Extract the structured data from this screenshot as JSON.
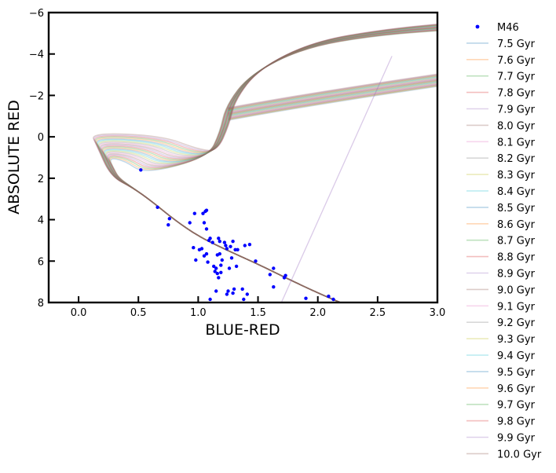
{
  "chart_data": {
    "type": "scatter",
    "xlabel": "BLUE-RED",
    "ylabel": "ABSOLUTE RED",
    "xlim": [
      -0.25,
      3.0
    ],
    "ylim": [
      8,
      -6
    ],
    "y_inverted": true,
    "grid": false,
    "legend_placement": "outside-right",
    "x_ticks": [
      "0.0",
      "0.5",
      "1.0",
      "1.5",
      "2.0",
      "2.5",
      "3.0"
    ],
    "x_tick_values": [
      0.0,
      0.5,
      1.0,
      1.5,
      2.0,
      2.5,
      3.0
    ],
    "y_ticks": [
      "−6",
      "−4",
      "−2",
      "0",
      "2",
      "4",
      "6",
      "8"
    ],
    "y_tick_values": [
      -6,
      -4,
      -2,
      0,
      2,
      4,
      6,
      8
    ],
    "scatter": {
      "name": "M46",
      "color": "#0000ff",
      "points": [
        [
          0.52,
          1.6
        ],
        [
          0.66,
          3.4
        ],
        [
          0.75,
          4.25
        ],
        [
          0.76,
          3.95
        ],
        [
          0.93,
          4.15
        ],
        [
          0.97,
          3.7
        ],
        [
          0.96,
          5.35
        ],
        [
          0.98,
          5.95
        ],
        [
          1.01,
          5.45
        ],
        [
          1.03,
          5.4
        ],
        [
          1.04,
          3.7
        ],
        [
          1.06,
          3.6
        ],
        [
          1.07,
          3.55
        ],
        [
          1.05,
          4.15
        ],
        [
          1.07,
          4.45
        ],
        [
          1.05,
          5.75
        ],
        [
          1.07,
          5.65
        ],
        [
          1.08,
          6.05
        ],
        [
          1.09,
          5.0
        ],
        [
          1.1,
          4.9
        ],
        [
          1.12,
          5.1
        ],
        [
          1.1,
          7.85
        ],
        [
          1.13,
          6.25
        ],
        [
          1.14,
          6.5
        ],
        [
          1.15,
          6.35
        ],
        [
          1.15,
          7.45
        ],
        [
          1.16,
          5.7
        ],
        [
          1.16,
          6.6
        ],
        [
          1.17,
          4.9
        ],
        [
          1.17,
          6.8
        ],
        [
          1.18,
          5.05
        ],
        [
          1.18,
          5.65
        ],
        [
          1.19,
          6.2
        ],
        [
          1.19,
          6.55
        ],
        [
          1.2,
          5.95
        ],
        [
          1.22,
          5.1
        ],
        [
          1.23,
          5.25
        ],
        [
          1.24,
          5.4
        ],
        [
          1.24,
          7.6
        ],
        [
          1.25,
          7.45
        ],
        [
          1.26,
          6.35
        ],
        [
          1.27,
          5.3
        ],
        [
          1.28,
          5.85
        ],
        [
          1.29,
          5.05
        ],
        [
          1.29,
          7.55
        ],
        [
          1.3,
          7.35
        ],
        [
          1.31,
          5.45
        ],
        [
          1.32,
          6.25
        ],
        [
          1.33,
          5.45
        ],
        [
          1.37,
          7.35
        ],
        [
          1.38,
          7.85
        ],
        [
          1.39,
          5.25
        ],
        [
          1.41,
          7.6
        ],
        [
          1.43,
          5.2
        ],
        [
          1.48,
          6.0
        ],
        [
          1.6,
          6.65
        ],
        [
          1.63,
          6.35
        ],
        [
          1.63,
          7.25
        ],
        [
          1.72,
          6.8
        ],
        [
          1.73,
          6.7
        ],
        [
          1.9,
          7.8
        ],
        [
          2.09,
          7.7
        ],
        [
          2.13,
          7.85
        ]
      ]
    },
    "series": [
      {
        "name": "7.5 Gyr",
        "color": "#1f77b4",
        "age": 7.5
      },
      {
        "name": "7.6 Gyr",
        "color": "#ff7f0e",
        "age": 7.6
      },
      {
        "name": "7.7 Gyr",
        "color": "#2ca02c",
        "age": 7.7
      },
      {
        "name": "7.8 Gyr",
        "color": "#d62728",
        "age": 7.8
      },
      {
        "name": "7.9 Gyr",
        "color": "#9467bd",
        "age": 7.9
      },
      {
        "name": "8.0 Gyr",
        "color": "#8c564b",
        "age": 8.0
      },
      {
        "name": "8.1 Gyr",
        "color": "#e377c2",
        "age": 8.1
      },
      {
        "name": "8.2 Gyr",
        "color": "#7f7f7f",
        "age": 8.2
      },
      {
        "name": "8.3 Gyr",
        "color": "#bcbd22",
        "age": 8.3
      },
      {
        "name": "8.4 Gyr",
        "color": "#17becf",
        "age": 8.4
      },
      {
        "name": "8.5 Gyr",
        "color": "#1f77b4",
        "age": 8.5
      },
      {
        "name": "8.6 Gyr",
        "color": "#ff7f0e",
        "age": 8.6
      },
      {
        "name": "8.7 Gyr",
        "color": "#2ca02c",
        "age": 8.7
      },
      {
        "name": "8.8 Gyr",
        "color": "#d62728",
        "age": 8.8
      },
      {
        "name": "8.9 Gyr",
        "color": "#9467bd",
        "age": 8.9
      },
      {
        "name": "9.0 Gyr",
        "color": "#8c564b",
        "age": 9.0
      },
      {
        "name": "9.1 Gyr",
        "color": "#e377c2",
        "age": 9.1
      },
      {
        "name": "9.2 Gyr",
        "color": "#7f7f7f",
        "age": 9.2
      },
      {
        "name": "9.3 Gyr",
        "color": "#bcbd22",
        "age": 9.3
      },
      {
        "name": "9.4 Gyr",
        "color": "#17becf",
        "age": 9.4
      },
      {
        "name": "9.5 Gyr",
        "color": "#1f77b4",
        "age": 9.5
      },
      {
        "name": "9.6 Gyr",
        "color": "#ff7f0e",
        "age": 9.6
      },
      {
        "name": "9.7 Gyr",
        "color": "#2ca02c",
        "age": 9.7
      },
      {
        "name": "9.8 Gyr",
        "color": "#d62728",
        "age": 9.8
      },
      {
        "name": "9.9 Gyr",
        "color": "#9467bd",
        "age": 9.9
      },
      {
        "name": "10.0 Gyr",
        "color": "#8c564b",
        "age": 10.0
      }
    ]
  }
}
